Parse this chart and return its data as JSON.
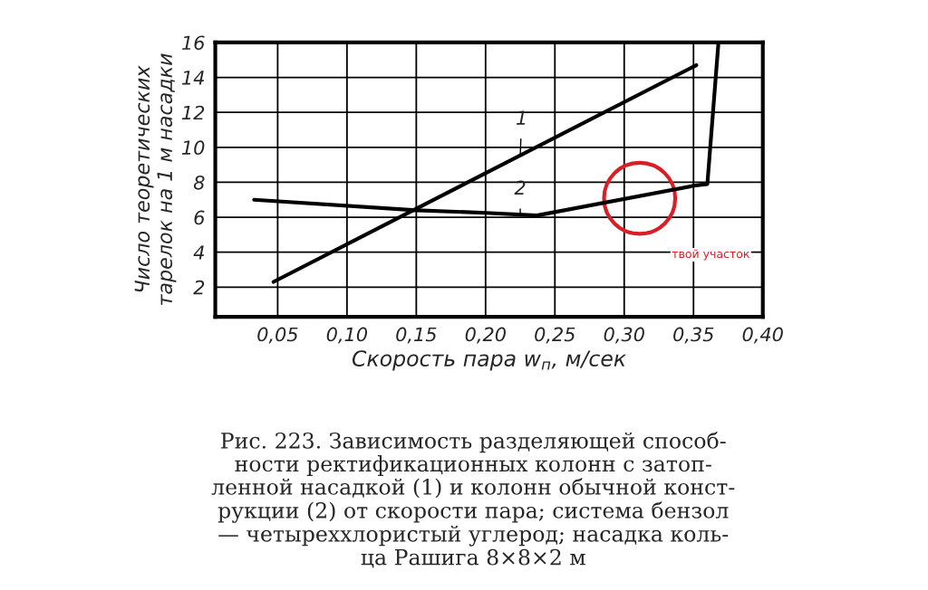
{
  "chart_data": {
    "type": "line",
    "xlabel": "Скорость пара w$_{п}$, м/сек",
    "ylabel": "Число теоретических\nтарелок на 1 м насадки",
    "series": [
      {
        "name": "1",
        "color": "#000000",
        "x": [
          0.047,
          0.352
        ],
        "values": [
          2.3,
          14.7
        ]
      },
      {
        "name": "2",
        "color": "#000000",
        "x": [
          0.033,
          0.15,
          0.2,
          0.237,
          0.35,
          0.36,
          0.368
        ],
        "values": [
          7.0,
          6.4,
          6.25,
          6.1,
          7.8,
          7.9,
          16
        ]
      }
    ],
    "xlim": [
      0.005,
      0.4
    ],
    "xticks": [
      {
        "value": 0.05,
        "label": "0,05"
      },
      {
        "value": 0.1,
        "label": "0,10"
      },
      {
        "value": 0.15,
        "label": "0,15"
      },
      {
        "value": 0.2,
        "label": "0,20"
      },
      {
        "value": 0.25,
        "label": "0,25"
      },
      {
        "value": 0.3,
        "label": "0,30"
      },
      {
        "value": 0.35,
        "label": "0,35"
      },
      {
        "value": 0.4,
        "label": "0,40"
      }
    ],
    "ylim": [
      0.3,
      16
    ],
    "yticks": [
      2,
      4,
      6,
      8,
      10,
      12,
      14,
      16
    ],
    "grid": true,
    "legend": false,
    "annotations": [
      "твой участок",
      "Рис. 223. Зависимость разделяющей способ-\nности ректификационных колонн с затоп-\nленной насадкой (1) и колонн обычной конст-\nрукции (2) от скорости пара; система бензол\n— четыреххлористый углерод; насадка коль-\nца Рашига 8×8×2 м"
    ]
  }
}
